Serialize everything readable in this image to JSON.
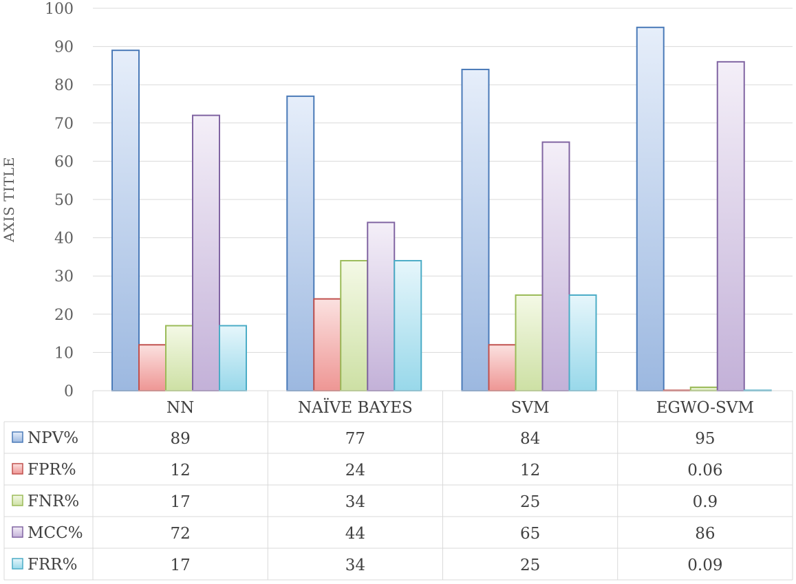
{
  "chart_data": {
    "type": "bar",
    "title": "",
    "xlabel": "",
    "ylabel": "AXIS TITLE",
    "ylim": [
      0,
      100
    ],
    "yticks": [
      0,
      10,
      20,
      30,
      40,
      50,
      60,
      70,
      80,
      90,
      100
    ],
    "grid": true,
    "legend": "data-table",
    "categories": [
      "NN",
      "NAÏVE BAYES",
      "SVM",
      "EGWO-SVM"
    ],
    "series": [
      {
        "name": "NPV%",
        "values": [
          89,
          77,
          84,
          95
        ],
        "labels": [
          "89",
          "77",
          "84",
          "95"
        ],
        "color": "#4a7ab8",
        "fill_top": "#e6eefa",
        "fill_bottom": "#9cb8e0"
      },
      {
        "name": "FPR%",
        "values": [
          12,
          24,
          12,
          0.06
        ],
        "labels": [
          "12",
          "24",
          "12",
          "0.06"
        ],
        "color": "#c0504d",
        "fill_top": "#fbe1e0",
        "fill_bottom": "#ee9694"
      },
      {
        "name": "FNR%",
        "values": [
          17,
          34,
          25,
          0.9
        ],
        "labels": [
          "17",
          "34",
          "25",
          "0.9"
        ],
        "color": "#9bbb59",
        "fill_top": "#f4f9e6",
        "fill_bottom": "#cde0a4"
      },
      {
        "name": "MCC%",
        "values": [
          72,
          44,
          65,
          86
        ],
        "labels": [
          "72",
          "44",
          "65",
          "86"
        ],
        "color": "#8064a2",
        "fill_top": "#f4eff8",
        "fill_bottom": "#c3b1d8"
      },
      {
        "name": "FRR%",
        "values": [
          17,
          34,
          25,
          0.09
        ],
        "labels": [
          "17",
          "34",
          "25",
          "0.09"
        ],
        "color": "#4bacc6",
        "fill_top": "#e6f6fb",
        "fill_bottom": "#98d8ea"
      }
    ]
  }
}
